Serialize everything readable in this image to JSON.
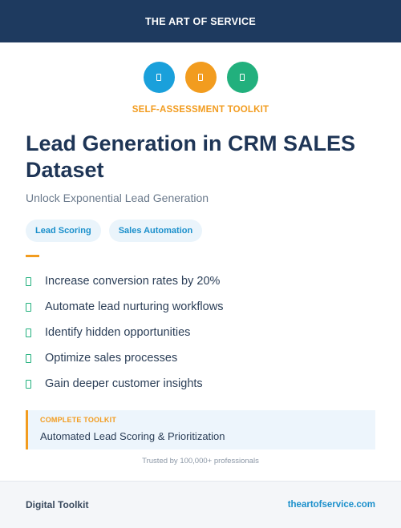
{
  "header": {
    "brand": "THE ART OF SERVICE"
  },
  "icons": [
    {
      "name": "doc-icon",
      "color": "#1aa0db"
    },
    {
      "name": "doc-icon",
      "color": "#f29c1f"
    },
    {
      "name": "doc-icon",
      "color": "#22b07d"
    }
  ],
  "hero": {
    "kicker": "SELF-ASSESSMENT TOOLKIT",
    "title": "Lead Generation in CRM SALES Dataset",
    "subtitle": "Unlock Exponential Lead Generation"
  },
  "tags": [
    "Lead Scoring",
    "Sales Automation"
  ],
  "features": [
    "Increase conversion rates by 20%",
    "Automate lead nurturing workflows",
    "Identify hidden opportunities",
    "Optimize sales processes",
    "Gain deeper customer insights"
  ],
  "callout": {
    "label": "COMPLETE TOOLKIT",
    "text": "Automated Lead Scoring & Prioritization"
  },
  "trusted": "Trusted by 100,000+ professionals",
  "footer": {
    "left": "Digital Toolkit",
    "right": "theartofservice.com"
  },
  "colors": {
    "header_bg": "#1e3a5f",
    "accent_orange": "#f29c1f",
    "accent_blue": "#1aa0db",
    "accent_green": "#22b07d"
  }
}
